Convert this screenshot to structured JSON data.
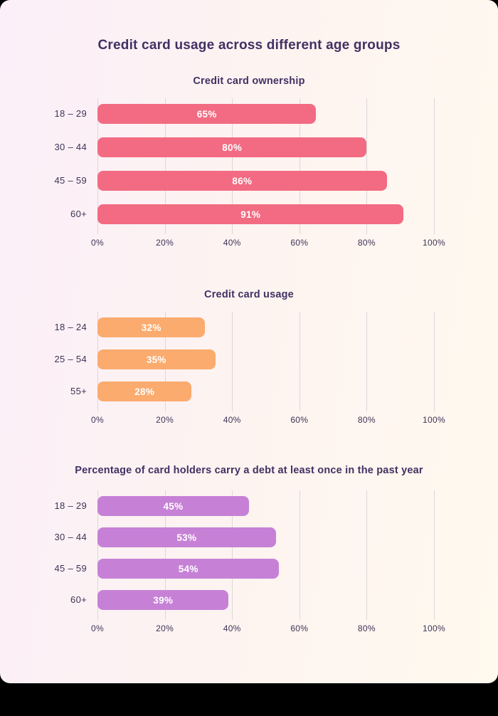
{
  "page": {
    "title": "Credit card usage across different age groups",
    "outer_background": "#000000",
    "card_gradient": [
      "#fbeff9",
      "#fdf3f1",
      "#fff9ee"
    ],
    "title_color": "#433063",
    "text_color": "#3d3356",
    "grid_line_color": "#ddd6da",
    "value_text_color": "#ffffff"
  },
  "chart_data": [
    {
      "type": "bar",
      "orientation": "horizontal",
      "title": "Credit card ownership",
      "categories": [
        "18 – 29",
        "30 – 44",
        "45 – 59",
        "60+"
      ],
      "values": [
        65,
        80,
        86,
        91
      ],
      "value_labels": [
        "65%",
        "80%",
        "86%",
        "91%"
      ],
      "bar_color": "#f26b82",
      "xlim": [
        0,
        100
      ],
      "xticks": [
        0,
        20,
        40,
        60,
        80,
        100
      ],
      "tick_labels": [
        "0%",
        "20%",
        "40%",
        "60%",
        "80%",
        "100%"
      ],
      "grid": true,
      "legend": false
    },
    {
      "type": "bar",
      "orientation": "horizontal",
      "title": "Credit card usage",
      "categories": [
        "18 – 24",
        "25 – 54",
        "55+"
      ],
      "values": [
        32,
        35,
        28
      ],
      "value_labels": [
        "32%",
        "35%",
        "28%"
      ],
      "bar_color": "#fbab6e",
      "xlim": [
        0,
        100
      ],
      "xticks": [
        0,
        20,
        40,
        60,
        80,
        100
      ],
      "tick_labels": [
        "0%",
        "20%",
        "40%",
        "60%",
        "80%",
        "100%"
      ],
      "grid": true,
      "legend": false
    },
    {
      "type": "bar",
      "orientation": "horizontal",
      "title": "Percentage of card holders carry a debt at least once in the past year",
      "categories": [
        "18 – 29",
        "30 – 44",
        "45 – 59",
        "60+"
      ],
      "values": [
        45,
        53,
        54,
        39
      ],
      "value_labels": [
        "45%",
        "53%",
        "54%",
        "39%"
      ],
      "bar_color": "#c681d6",
      "xlim": [
        0,
        100
      ],
      "xticks": [
        0,
        20,
        40,
        60,
        80,
        100
      ],
      "tick_labels": [
        "0%",
        "20%",
        "40%",
        "60%",
        "80%",
        "100%"
      ],
      "grid": true,
      "legend": false
    }
  ]
}
